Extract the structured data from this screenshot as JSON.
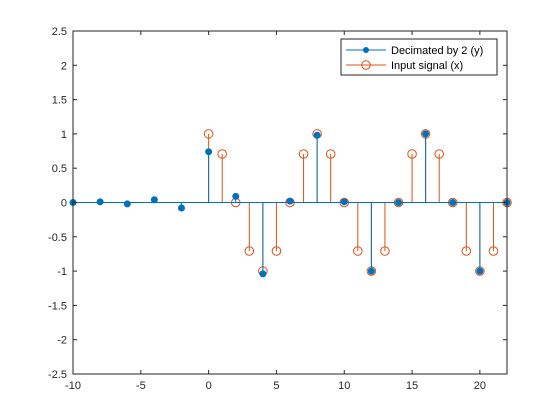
{
  "chart_data": {
    "type": "stem",
    "xlim": [
      -10,
      22
    ],
    "ylim": [
      -2.5,
      2.5
    ],
    "x_ticks": [
      -10,
      -5,
      0,
      5,
      10,
      15,
      20
    ],
    "y_ticks": [
      -2.5,
      -2,
      -1.5,
      -1,
      -0.5,
      0,
      0.5,
      1,
      1.5,
      2,
      2.5
    ],
    "x_tick_labels": [
      "-10",
      "-5",
      "0",
      "5",
      "10",
      "15",
      "20"
    ],
    "y_tick_labels": [
      "-2.5",
      "-2",
      "-1.5",
      "-1",
      "-0.5",
      "0",
      "0.5",
      "1",
      "1.5",
      "2",
      "2.5"
    ],
    "grid": false,
    "legend_location": "top-right",
    "series": [
      {
        "name": "Decimated by 2 (y)",
        "color": "#0072BD",
        "marker": "filled-circle",
        "x": [
          -10,
          -8,
          -6,
          -4,
          -2,
          0,
          2,
          4,
          6,
          8,
          10,
          12,
          14,
          16,
          18,
          20,
          22
        ],
        "y": [
          0,
          0.01,
          -0.02,
          0.04,
          -0.08,
          0.74,
          0.09,
          -1.04,
          0.02,
          0.98,
          0.01,
          -1.0,
          0,
          1.0,
          0,
          -1.0,
          0
        ]
      },
      {
        "name": "Input signal (x)",
        "color": "#D95319",
        "marker": "open-circle",
        "x": [
          0,
          1,
          2,
          3,
          4,
          5,
          6,
          7,
          8,
          9,
          10,
          11,
          12,
          13,
          14,
          15,
          16,
          17,
          18,
          19,
          20,
          21,
          22
        ],
        "y": [
          1,
          0.707,
          0,
          -0.707,
          -1,
          -0.707,
          0,
          0.707,
          1,
          0.707,
          0,
          -0.707,
          -1,
          -0.707,
          0,
          0.707,
          1,
          0.707,
          0,
          -0.707,
          -1,
          -0.707,
          0
        ]
      }
    ]
  }
}
